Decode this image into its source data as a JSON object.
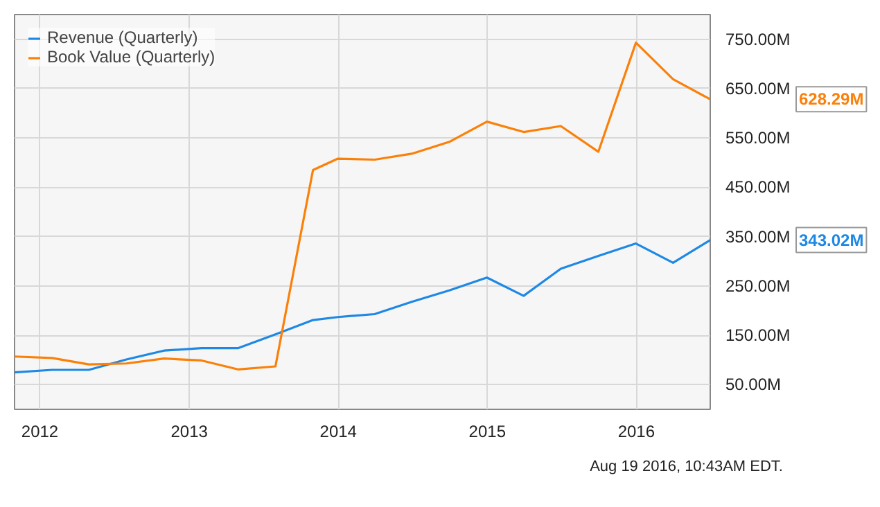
{
  "chart_data": {
    "type": "line",
    "x": [
      "2011-10-31",
      "2012-01-31",
      "2012-04-30",
      "2012-07-31",
      "2012-10-31",
      "2013-01-31",
      "2013-04-30",
      "2013-07-31",
      "2013-10-31",
      "2013-12-31",
      "2014-03-31",
      "2014-06-30",
      "2014-09-30",
      "2014-12-31",
      "2015-03-31",
      "2015-06-30",
      "2015-09-30",
      "2015-12-31",
      "2016-03-31",
      "2016-06-30"
    ],
    "series": [
      {
        "name": "Revenue (Quarterly)",
        "color": "#1e88e5",
        "values": [
          75,
          80,
          80,
          101,
          119,
          124,
          124,
          152,
          181,
          187,
          193,
          218,
          241,
          267,
          230,
          285,
          311,
          336,
          297,
          343.02
        ]
      },
      {
        "name": "Book Value (Quarterly)",
        "color": "#fb8009",
        "values": [
          107,
          104,
          91,
          93,
          103,
          99,
          81,
          87,
          485,
          508,
          506,
          518,
          542,
          583,
          562,
          574,
          522,
          743,
          669,
          628.29
        ]
      }
    ],
    "xlim": [
      "2011-10-31",
      "2016-06-30"
    ],
    "xticks": [
      {
        "value": "2012-01-01",
        "label": "2012"
      },
      {
        "value": "2013-01-01",
        "label": "2013"
      },
      {
        "value": "2014-01-01",
        "label": "2014"
      },
      {
        "value": "2015-01-01",
        "label": "2015"
      },
      {
        "value": "2016-01-01",
        "label": "2016"
      }
    ],
    "ylim": [
      0,
      800
    ],
    "yticks": [
      {
        "value": 50,
        "label": "50.00M"
      },
      {
        "value": 150,
        "label": "150.00M"
      },
      {
        "value": 250,
        "label": "250.00M"
      },
      {
        "value": 350,
        "label": "350.00M"
      },
      {
        "value": 450,
        "label": "450.00M"
      },
      {
        "value": 550,
        "label": "550.00M"
      },
      {
        "value": 650,
        "label": "650.00M"
      },
      {
        "value": 750,
        "label": "750.00M"
      }
    ],
    "annotations": [
      "343.02M",
      "628.29M",
      "Aug 19 2016, 10:43AM EDT."
    ],
    "grid": true,
    "legend": "top left",
    "marker": "none",
    "line_style": "solid"
  }
}
